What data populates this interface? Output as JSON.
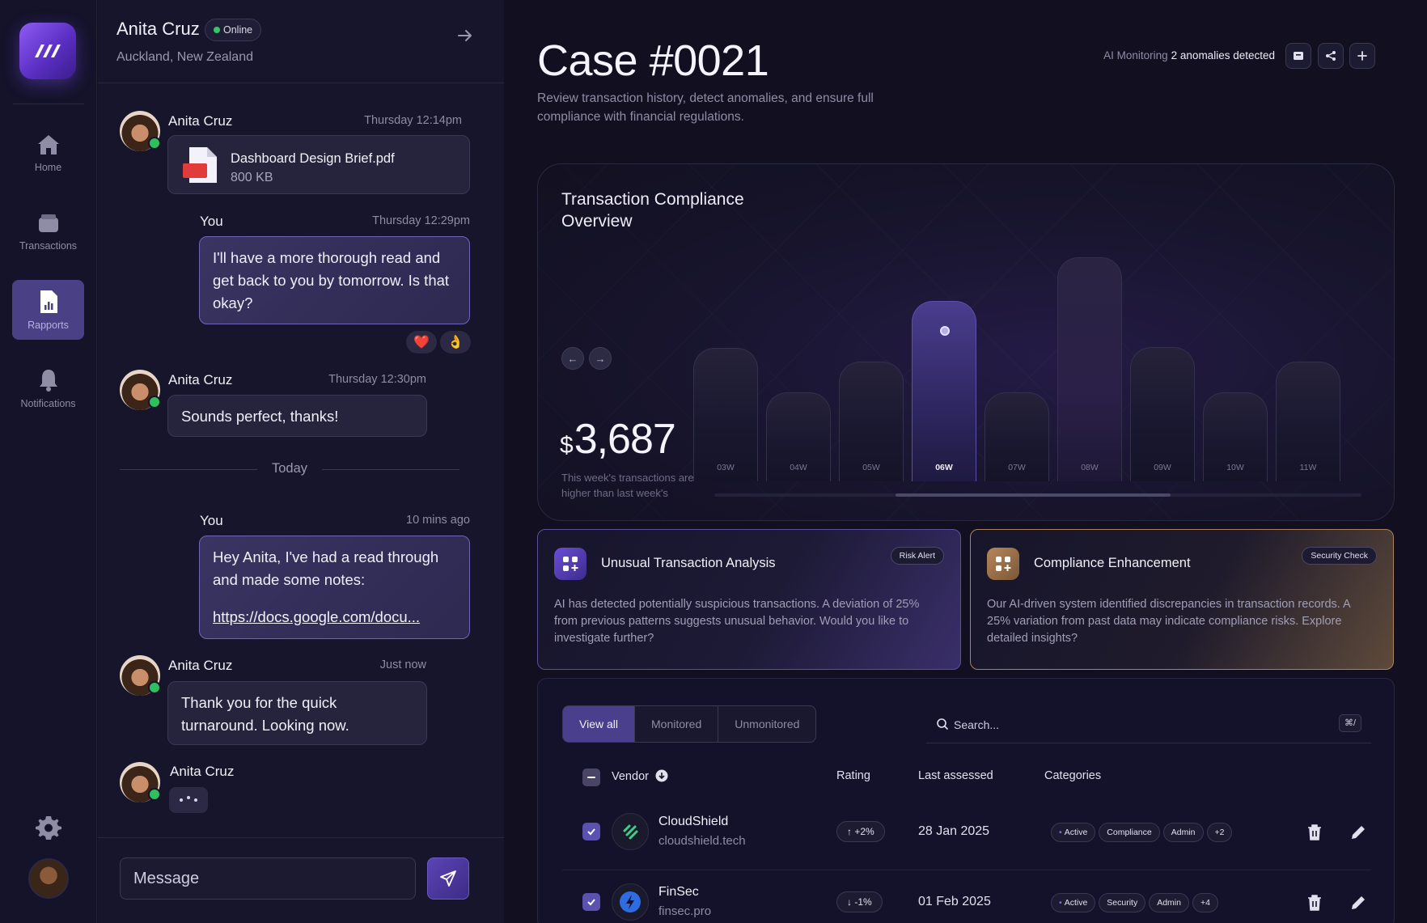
{
  "nav": {
    "items": [
      {
        "label": "Home",
        "icon": "home-icon"
      },
      {
        "label": "Transactions",
        "icon": "wallet-icon"
      },
      {
        "label": "Rapports",
        "icon": "report-icon",
        "active": true
      },
      {
        "label": "Notifications",
        "icon": "bell-icon"
      }
    ]
  },
  "chat": {
    "contact_name": "Anita Cruz",
    "status": "Online",
    "location": "Auckland, New Zealand",
    "messages": [
      {
        "sender": "Anita Cruz",
        "time": "Thursday 12:14pm",
        "file_name": "Dashboard Design Brief.pdf",
        "file_size": "800 KB"
      },
      {
        "sender": "You",
        "time": "Thursday 12:29pm",
        "text": "I'll have a more thorough read and get back to you by tomorrow. Is that okay?",
        "reactions": [
          "❤️",
          "👌"
        ]
      },
      {
        "sender": "Anita Cruz",
        "time": "Thursday 12:30pm",
        "text": "Sounds perfect, thanks!"
      },
      {
        "sender": "You",
        "time": "10 mins ago",
        "text": "Hey Anita, I've had a read through and made some notes:",
        "link": "https://docs.google.com/docu..."
      },
      {
        "sender": "Anita Cruz",
        "time": "Just now",
        "text": "Thank you for the quick turnaround. Looking now."
      },
      {
        "sender": "Anita Cruz",
        "typing": true
      }
    ],
    "divider_label": "Today",
    "composer_placeholder": "Message"
  },
  "header": {
    "title": "Case #0021",
    "description": "Review transaction history, detect anomalies, and ensure full compliance with financial regulations.",
    "monitoring_label": "AI Monitoring",
    "monitoring_value": "2 anomalies detected"
  },
  "chart_data": {
    "type": "bar",
    "title": "Transaction Compliance Overview",
    "categories": [
      "03W",
      "04W",
      "05W",
      "06W",
      "07W",
      "08W",
      "09W",
      "10W",
      "11W"
    ],
    "values": [
      165,
      110,
      148,
      223,
      110,
      277,
      166,
      110,
      148
    ],
    "highlighted": "06W",
    "amount_currency": "$",
    "amount": "3,687",
    "note": "This week's transactions are higher than last week's"
  },
  "insights": [
    {
      "title": "Unusual Transaction Analysis",
      "tag": "Risk Alert",
      "body": "AI has detected potentially suspicious transactions. A deviation of 25% from previous patterns suggests unusual behavior. Would you like to investigate further?",
      "accent": "#6a4ed6"
    },
    {
      "title": "Compliance Enhancement",
      "tag": "Security Check",
      "body": "Our AI-driven system identified discrepancies in transaction records. A 25% variation from past data may indicate compliance risks. Explore detailed insights?",
      "accent": "#b7875b"
    }
  ],
  "table": {
    "tabs": [
      "View all",
      "Monitored",
      "Unmonitored"
    ],
    "search_placeholder": "Search...",
    "search_shortcut": "⌘/",
    "columns": [
      "Vendor",
      "Rating",
      "Last assessed",
      "Categories"
    ],
    "rows": [
      {
        "name": "CloudShield",
        "domain": "cloudshield.tech",
        "rating": "+2%",
        "rating_dir": "up",
        "date": "28 Jan 2025",
        "categories": [
          "Active",
          "Compliance",
          "Admin",
          "+2"
        ]
      },
      {
        "name": "FinSec",
        "domain": "finsec.pro",
        "rating": "-1%",
        "rating_dir": "down",
        "date": "01 Feb 2025",
        "categories": [
          "Active",
          "Security",
          "Admin",
          "+4"
        ]
      }
    ]
  }
}
